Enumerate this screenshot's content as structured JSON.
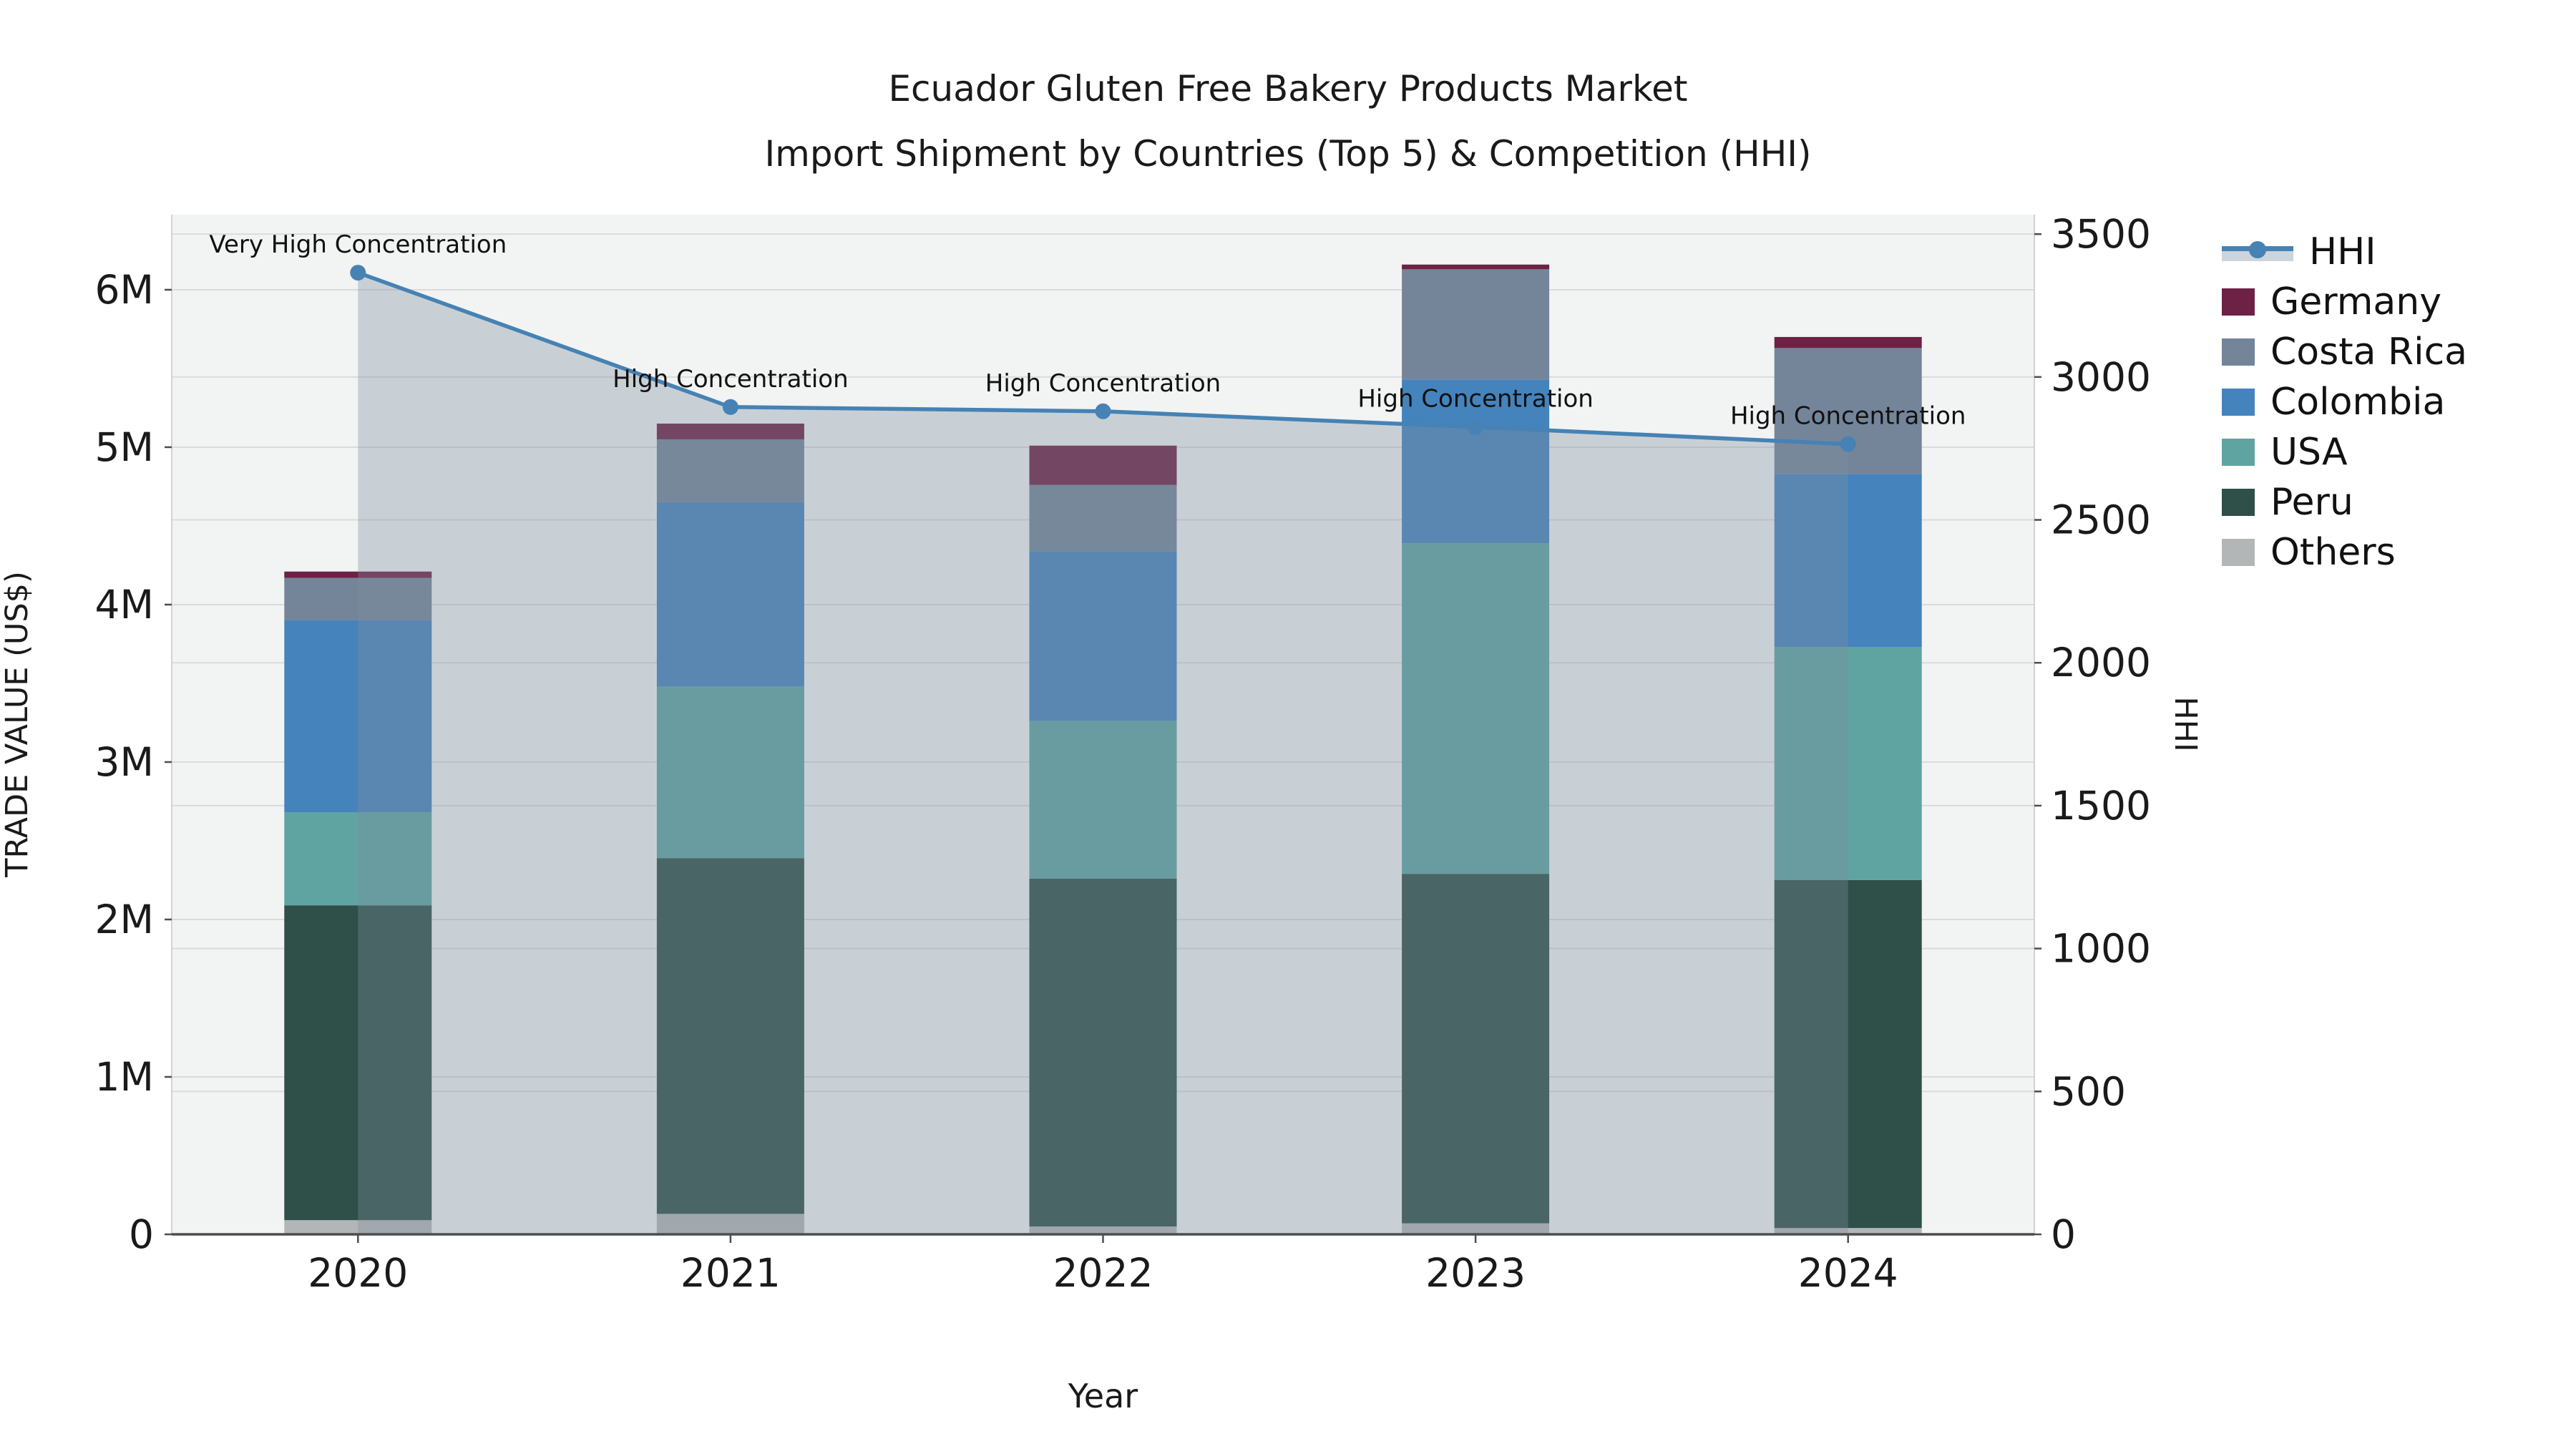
{
  "title": "Ecuador Gluten Free Bakery Products Market",
  "subtitle": "Import Shipment by Countries (Top 5) & Competition (HHI)",
  "chart_data": {
    "type": [
      "bar-stacked",
      "line"
    ],
    "unit": "M US$",
    "categories": [
      "2020",
      "2021",
      "2022",
      "2023",
      "2024"
    ],
    "series": [
      {
        "name": "Others",
        "color": "#B3B6B7",
        "values": [
          0.09,
          0.13,
          0.05,
          0.07,
          0.04
        ]
      },
      {
        "name": "Peru",
        "color": "#2F4F49",
        "values": [
          2.0,
          2.26,
          2.21,
          2.22,
          2.21
        ]
      },
      {
        "name": "USA",
        "color": "#5FA4A1",
        "values": [
          0.59,
          1.09,
          1.0,
          2.1,
          1.48
        ]
      },
      {
        "name": "Colombia",
        "color": "#4583BD",
        "values": [
          1.22,
          1.17,
          1.08,
          1.04,
          1.1
        ]
      },
      {
        "name": "Costa Rica",
        "color": "#74859A",
        "values": [
          0.27,
          0.4,
          0.42,
          0.7,
          0.8
        ]
      },
      {
        "name": "Germany",
        "color": "#6D2144",
        "values": [
          0.04,
          0.1,
          0.25,
          0.03,
          0.07
        ]
      }
    ],
    "hhi": {
      "name": "HHI",
      "color": "#4682B4",
      "area_color": "rgba(125,143,158,0.35)",
      "values": [
        3365,
        2895,
        2880,
        2825,
        2765
      ],
      "annotations": [
        "Very High Concentration",
        "High Concentration",
        "High Concentration",
        "High Concentration",
        "High Concentration"
      ]
    },
    "legend": [
      "HHI",
      "Germany",
      "Costa Rica",
      "Colombia",
      "USA",
      "Peru",
      "Others"
    ],
    "xlabel": "Year",
    "ylabel": "TRADE VALUE (US$)",
    "y2label": "HHI",
    "yticks": [
      "0",
      "1M",
      "2M",
      "3M",
      "4M",
      "5M",
      "6M"
    ],
    "ytick_values_millions": [
      0,
      1,
      2,
      3,
      4,
      5,
      6
    ],
    "y2ticks": [
      "0",
      "500",
      "1000",
      "1500",
      "2000",
      "2500",
      "3000",
      "3500"
    ],
    "y2tick_values": [
      0,
      500,
      1000,
      1500,
      2000,
      2500,
      3000,
      3500
    ],
    "ylim_millions": [
      0,
      6.477
    ],
    "y2lim": [
      0,
      3568
    ],
    "grid": true,
    "legend_position": "right",
    "plot_bg_color": "#F2F3F3",
    "grid_color": "#DBDBDB"
  }
}
